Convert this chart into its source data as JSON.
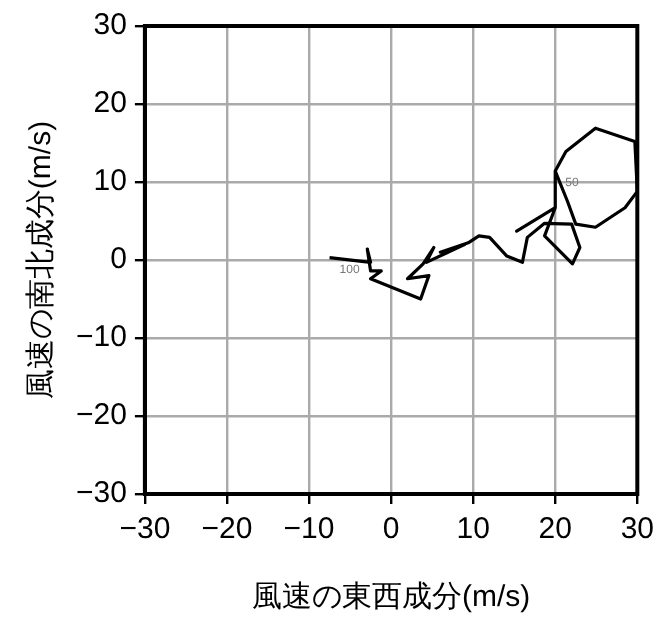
{
  "chart_data": {
    "type": "line",
    "xlabel": "風速の東西成分(m/s)",
    "ylabel": "風速の南北成分(m/s)",
    "x": [
      -7.5,
      -2.5,
      -2.9,
      -2.5,
      -1.2,
      -2.5,
      3.6,
      4.6,
      2.0,
      3.9,
      5.2,
      4.3,
      9.0,
      6.0,
      9.4,
      10.7,
      12.0,
      14.1,
      16.0,
      16.6,
      18.7,
      22.0,
      23.0,
      22.1,
      18.7,
      20.0,
      15.3,
      20.0,
      20.0,
      21.3,
      24.9,
      29.7,
      30.0,
      28.5,
      24.9,
      22.5,
      21.5,
      20.0
    ],
    "series": [
      {
        "color": "#000000",
        "values": [
          0.3,
          -0.3,
          1.4,
          -1.4,
          -1.4,
          -2.4,
          -5.0,
          -2.0,
          -2.4,
          -0.5,
          1.6,
          -0.3,
          2.0,
          1.0,
          2.2,
          3.1,
          2.9,
          0.5,
          -0.3,
          2.9,
          4.7,
          4.6,
          1.6,
          -0.5,
          3.1,
          6.7,
          3.7,
          6.7,
          11.4,
          13.9,
          16.9,
          15.2,
          8.8,
          6.7,
          4.2,
          4.6,
          7.5,
          11.4
        ]
      }
    ],
    "xlim": [
      -30,
      30
    ],
    "ylim": [
      -30,
      30
    ],
    "xticks": [
      {
        "value": -30,
        "label": "−30"
      },
      {
        "value": -20,
        "label": "−20"
      },
      {
        "value": -10,
        "label": "−10"
      },
      0,
      10,
      20,
      30
    ],
    "yticks": [
      {
        "value": -30,
        "label": "−30"
      },
      {
        "value": -20,
        "label": "−20"
      },
      {
        "value": -10,
        "label": "−10"
      },
      0,
      10,
      20,
      30
    ],
    "grid": true,
    "marker": "none",
    "line_style": "solid",
    "annotations": [
      {
        "text": "50",
        "x": 20.0,
        "y": 11.4
      },
      {
        "text": "100",
        "x": -7.5,
        "y": 0.3
      }
    ]
  }
}
